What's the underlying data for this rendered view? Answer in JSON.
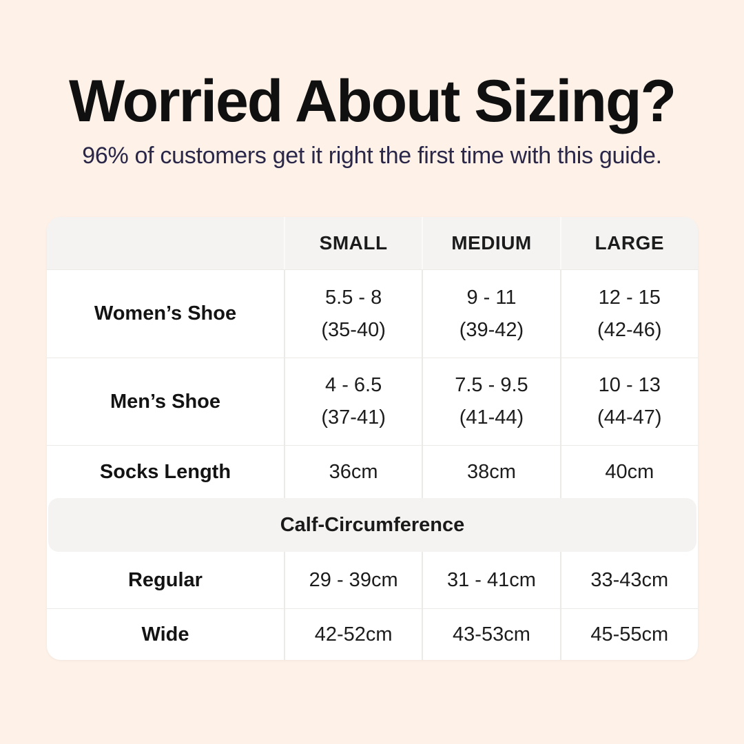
{
  "page": {
    "background_color": "#fdf1e8",
    "card_color": "#ffffff",
    "band_color": "#f4f3f1",
    "title_color": "#101010",
    "subtitle_color": "#2a2749"
  },
  "header": {
    "title": "Worried About Sizing?",
    "subtitle": "96% of customers get it right the first time with this guide."
  },
  "table": {
    "columns": [
      "",
      "SMALL",
      "MEDIUM",
      "LARGE"
    ],
    "rows": [
      {
        "label": "Women’s Shoe",
        "values": [
          [
            "5.5 - 8",
            "(35-40)"
          ],
          [
            "9 - 11",
            "(39-42)"
          ],
          [
            "12 - 15",
            "(42-46)"
          ]
        ]
      },
      {
        "label": "Men’s Shoe",
        "values": [
          [
            "4 - 6.5",
            "(37-41)"
          ],
          [
            "7.5 - 9.5",
            "(41-44)"
          ],
          [
            "10 - 13",
            "(44-47)"
          ]
        ]
      },
      {
        "label": "Socks Length",
        "values": [
          [
            "36cm"
          ],
          [
            "38cm"
          ],
          [
            "40cm"
          ]
        ]
      }
    ],
    "section_title": "Calf-Circumference",
    "section_rows": [
      {
        "label": "Regular",
        "values": [
          [
            "29 - 39cm"
          ],
          [
            "31 - 41cm"
          ],
          [
            "33-43cm"
          ]
        ]
      },
      {
        "label": "Wide",
        "values": [
          [
            "42-52cm"
          ],
          [
            "43-53cm"
          ],
          [
            "45-55cm"
          ]
        ]
      }
    ]
  }
}
